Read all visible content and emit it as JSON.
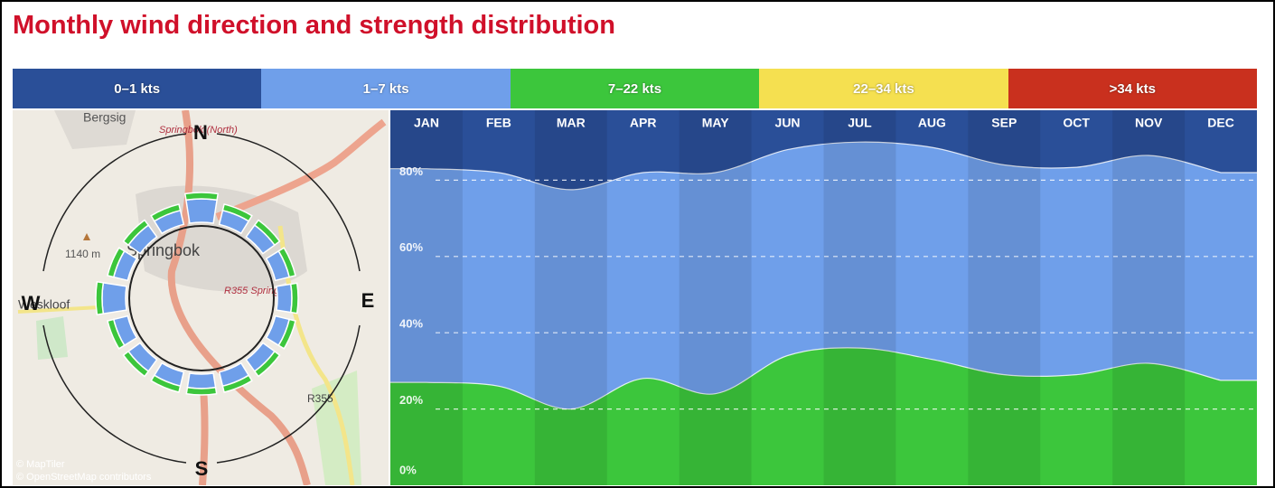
{
  "chart_data": {
    "type": "area",
    "title": "Monthly wind direction and strength distribution",
    "categories": [
      "JAN",
      "FEB",
      "MAR",
      "APR",
      "MAY",
      "JUN",
      "JUL",
      "AUG",
      "SEP",
      "OCT",
      "NOV",
      "DEC"
    ],
    "stacked": true,
    "series": [
      {
        "name": "0–1 kts",
        "color": "#2a4f98",
        "values": [
          17,
          18,
          22.5,
          18,
          18,
          12,
          10,
          11.4,
          16,
          16.6,
          13.5,
          18
        ]
      },
      {
        "name": "1–7 kts",
        "color": "#6f9fea",
        "values": [
          56,
          56,
          57.5,
          54,
          58,
          54,
          54,
          55.6,
          55,
          54.4,
          54.5,
          54.5
        ]
      },
      {
        "name": "7–22 kts",
        "color": "#3cc63c",
        "values": [
          27,
          26,
          20,
          28,
          24,
          34,
          36,
          33,
          29,
          29,
          32,
          27.5
        ]
      },
      {
        "name": "22–34 kts",
        "color": "#f5e050",
        "values": [
          0,
          0,
          0,
          0,
          0,
          0,
          0,
          0,
          0,
          0,
          0,
          0
        ]
      },
      {
        "name": ">34 kts",
        "color": "#c9301e",
        "values": [
          0,
          0,
          0,
          0,
          0,
          0,
          0,
          0,
          0,
          0,
          0,
          0
        ]
      }
    ],
    "ylim": [
      0,
      100
    ],
    "yticks": [
      {
        "value": 0,
        "label": "0%"
      },
      {
        "value": 20,
        "label": "20%"
      },
      {
        "value": 40,
        "label": "40%"
      },
      {
        "value": 60,
        "label": "60%"
      },
      {
        "value": 80,
        "label": "80%"
      }
    ],
    "grid": true
  },
  "map": {
    "compass": {
      "n": "N",
      "e": "E",
      "s": "S",
      "w": "W"
    },
    "labels": [
      "Bergsig",
      "Springbok (North)",
      "1140 m",
      "Springbok",
      "R355 Springbok",
      "Weskloof",
      "R355"
    ],
    "attribution": [
      "© MapTiler",
      "© OpenStreetMap contributors"
    ]
  }
}
